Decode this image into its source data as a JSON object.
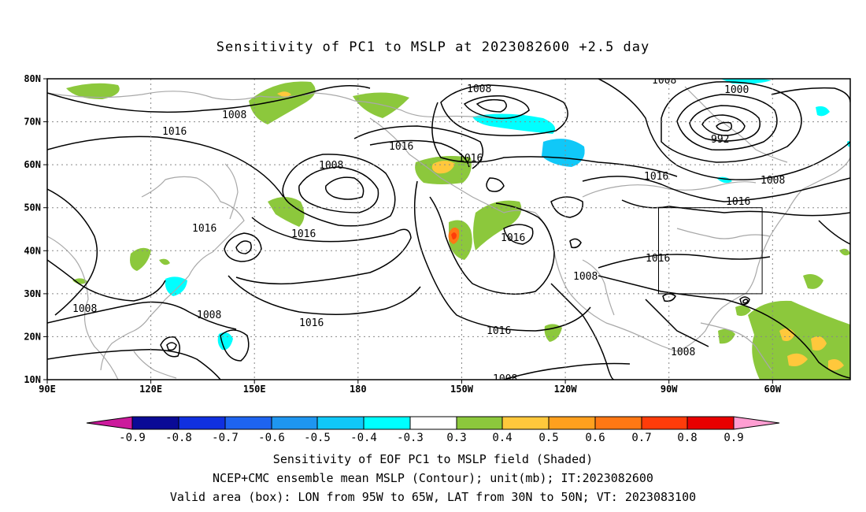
{
  "title": "Sensitivity of PC1 to MSLP at 2023082600 +2.5 day",
  "lon_labels": [
    "90E",
    "120E",
    "150E",
    "180",
    "150W",
    "120W",
    "90W",
    "60W"
  ],
  "lat_labels": [
    "80N",
    "70N",
    "60N",
    "50N",
    "40N",
    "30N",
    "20N",
    "10N"
  ],
  "contour_labels": [
    "1008",
    "1016",
    "1016",
    "1008",
    "1016",
    "1008",
    "1016",
    "1016",
    "1008",
    "1016",
    "1016",
    "1016",
    "1008",
    "1016",
    "1016",
    "1008",
    "992",
    "1000",
    "1008",
    "1016",
    "1016",
    "1008",
    "1008",
    "1008"
  ],
  "colorbar": {
    "colors": [
      "#cc1a9c",
      "#0a0a96",
      "#1030e0",
      "#1e64f0",
      "#1e96f0",
      "#10c8f8",
      "#00ffff",
      "#ffffff",
      "#8cc83c",
      "#ffc83c",
      "#ffa01e",
      "#ff7814",
      "#ff3c0a",
      "#e80000",
      "#ff9ed2"
    ],
    "labels": [
      "-0.9",
      "-0.8",
      "-0.7",
      "-0.6",
      "-0.5",
      "-0.4",
      "-0.3",
      "0.3",
      "0.4",
      "0.5",
      "0.6",
      "0.7",
      "0.8",
      "0.9"
    ]
  },
  "captions": {
    "line1": "Sensitivity of EOF PC1 to MSLP field (Shaded)",
    "line2": "NCEP+CMC ensemble mean MSLP (Contour); unit(mb); IT:2023082600",
    "line3": "Valid area (box): LON from 95W to 65W, LAT from 30N to 50N; VT: 2023083100"
  }
}
